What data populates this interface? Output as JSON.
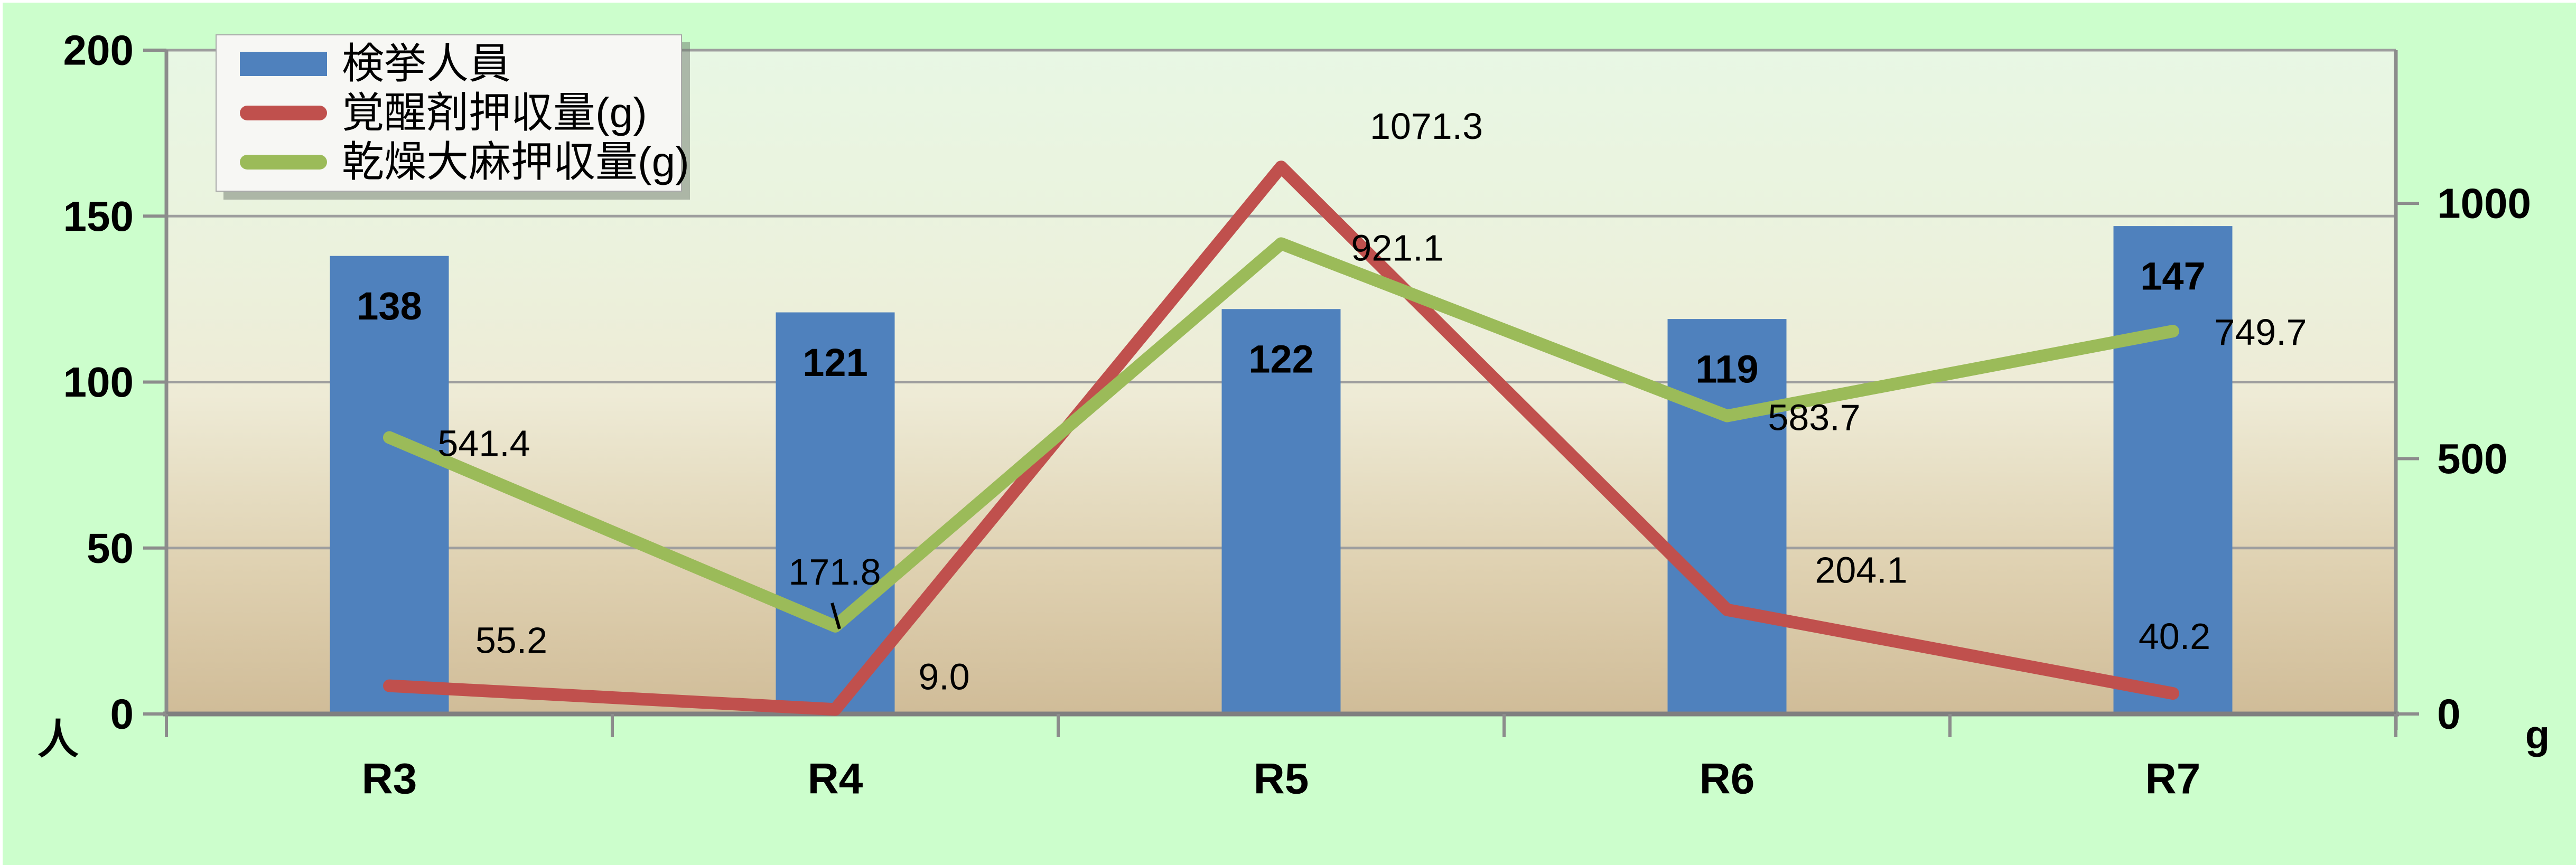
{
  "chart_data": {
    "type": "combo-bar-line",
    "categories": [
      "R3",
      "R4",
      "R5",
      "R6",
      "R7"
    ],
    "series": [
      {
        "name": "検挙人員",
        "type": "bar",
        "axis": "left",
        "color": "#4F81BD",
        "values": [
          138,
          121,
          122,
          119,
          147
        ]
      },
      {
        "name": "覚醒剤押収量(g)",
        "type": "line",
        "axis": "right",
        "color": "#C0504D",
        "values": [
          55.2,
          9.0,
          1071.3,
          204.1,
          40.2
        ],
        "label_offsets": [
          [
            231,
            -86
          ],
          [
            206,
            -62
          ],
          [
            275,
            -77
          ],
          [
            254,
            -75
          ],
          [
            3,
            -108
          ]
        ]
      },
      {
        "name": "乾燥大麻押収量(g)",
        "type": "line",
        "axis": "right",
        "color": "#9BBB59",
        "values": [
          541.4,
          171.8,
          921.1,
          583.7,
          749.7
        ],
        "label_offsets": [
          [
            179,
            11
          ],
          [
            -1,
            -103
          ],
          [
            220,
            8
          ],
          [
            165,
            3
          ],
          [
            166,
            2
          ]
        ]
      }
    ],
    "left_axis": {
      "unit": "人",
      "ticks": [
        0,
        50,
        100,
        150,
        200
      ],
      "max": 200
    },
    "right_axis": {
      "unit": "g",
      "tick_labels": [
        0,
        500,
        1000
      ],
      "scale_max": 1300
    },
    "grid": true,
    "legend_position": "top-left",
    "label_leader": {
      "series_index": 2,
      "point_index": 1
    }
  },
  "colors": {
    "page_background": "#CCFECC",
    "plot_gradient": [
      [
        "0%",
        "#E8F7E4"
      ],
      [
        "30%",
        "#EBF2DD"
      ],
      [
        "52%",
        "#EEEBD6"
      ],
      [
        "78%",
        "#DFD1B1"
      ],
      [
        "100%",
        "#D0BC98"
      ]
    ],
    "gridline": "#9E9E9E",
    "axis": "#8C8C8C",
    "axis_bottom": "#7F7F7F",
    "bar": "#4F81BD",
    "stimulant_line": "#C0504D",
    "cannabis_line": "#9BBB59",
    "legend_background": "#F7F7F4",
    "legend_border": "#A9A9A9",
    "label_text": "#000000"
  }
}
